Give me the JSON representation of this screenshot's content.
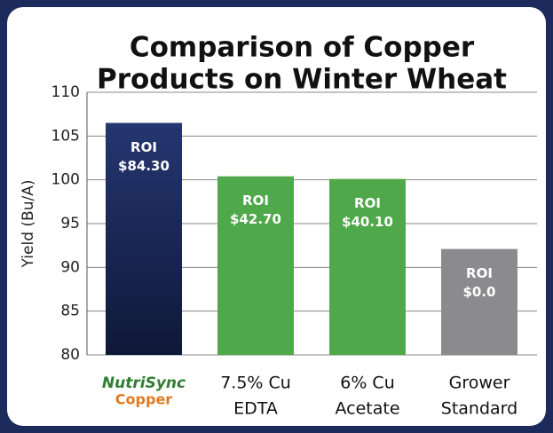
{
  "chart_data": {
    "type": "bar",
    "title": [
      "Comparison of Copper",
      "Products on Winter Wheat"
    ],
    "y_label": "Yield (Bu/A)",
    "categories": [
      [
        "NutriSync",
        "Copper"
      ],
      [
        "7.5% Cu",
        "EDTA"
      ],
      [
        "6% Cu",
        "Acetate"
      ],
      [
        "Grower",
        "Standard"
      ]
    ],
    "values": [
      106.5,
      100.4,
      100.1,
      92.1
    ],
    "colors": [
      "#16224f",
      "#4fa84a",
      "#4fa84a",
      "#8b8b8d"
    ],
    "annotations": [
      [
        "ROI",
        "$84.30"
      ],
      [
        "ROI",
        "$42.70"
      ],
      [
        "ROI",
        "$40.10"
      ],
      [
        "ROI",
        "$0.0"
      ]
    ],
    "ylim": [
      80,
      110
    ],
    "yticks": [
      80,
      85,
      90,
      95,
      100,
      105,
      110
    ],
    "grid": true
  }
}
